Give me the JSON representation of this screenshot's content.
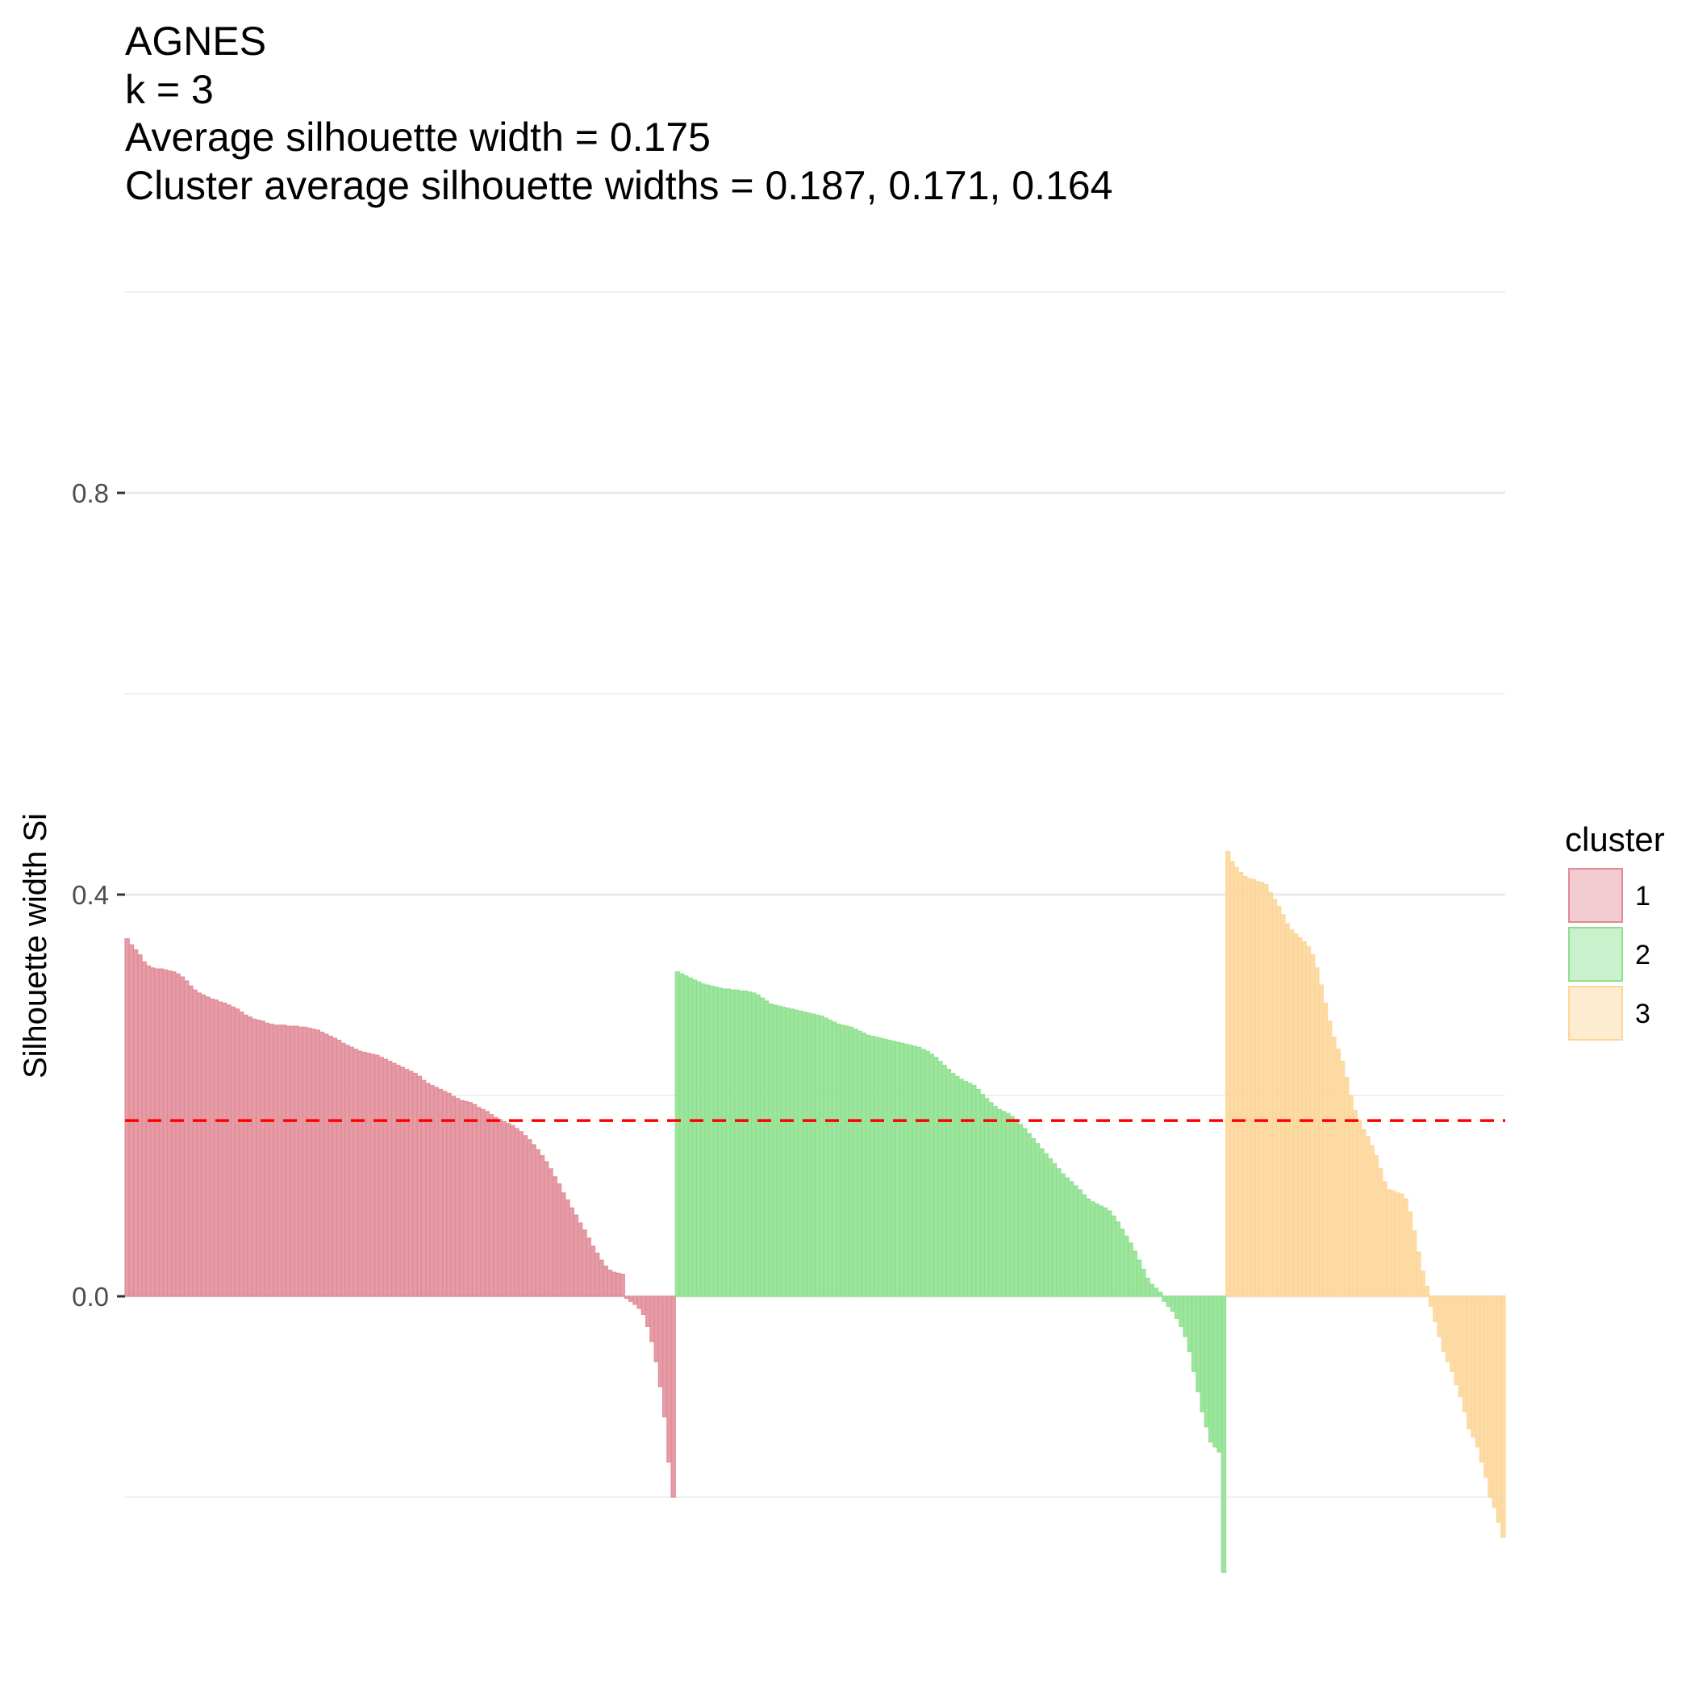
{
  "chart_data": {
    "type": "bar",
    "title_lines": [
      "AGNES",
      "k = 3",
      "Average silhouette width = 0.175",
      "Cluster average silhouette widths = 0.187, 0.171, 0.164"
    ],
    "ylabel": "Silhouette width Si",
    "xlabel": "",
    "ylim": [
      -0.3,
      1.0
    ],
    "yticks": [
      0.0,
      0.4,
      0.8
    ],
    "ytick_labels": [
      "0.0",
      "0.4",
      "0.8"
    ],
    "grid": true,
    "average_silhouette_width": 0.175,
    "reference_line_color": "#ff0000",
    "legend": {
      "title": "cluster",
      "placement": "right"
    },
    "series": [
      {
        "name": "1",
        "color": "#e08b96",
        "values": [
          0.356,
          0.35,
          0.345,
          0.34,
          0.333,
          0.329,
          0.327,
          0.326,
          0.326,
          0.325,
          0.324,
          0.323,
          0.321,
          0.318,
          0.314,
          0.309,
          0.305,
          0.302,
          0.3,
          0.298,
          0.296,
          0.295,
          0.293,
          0.292,
          0.29,
          0.288,
          0.286,
          0.283,
          0.28,
          0.278,
          0.276,
          0.275,
          0.274,
          0.272,
          0.271,
          0.27,
          0.27,
          0.27,
          0.269,
          0.269,
          0.269,
          0.268,
          0.268,
          0.267,
          0.266,
          0.265,
          0.263,
          0.261,
          0.259,
          0.257,
          0.255,
          0.252,
          0.25,
          0.248,
          0.246,
          0.244,
          0.243,
          0.242,
          0.241,
          0.24,
          0.238,
          0.236,
          0.234,
          0.232,
          0.23,
          0.228,
          0.226,
          0.224,
          0.222,
          0.219,
          0.215,
          0.212,
          0.21,
          0.208,
          0.206,
          0.204,
          0.202,
          0.199,
          0.197,
          0.195,
          0.194,
          0.193,
          0.191,
          0.188,
          0.186,
          0.184,
          0.181,
          0.178,
          0.176,
          0.174,
          0.172,
          0.17,
          0.167,
          0.164,
          0.16,
          0.156,
          0.151,
          0.146,
          0.14,
          0.134,
          0.127,
          0.119,
          0.112,
          0.103,
          0.096,
          0.088,
          0.081,
          0.073,
          0.066,
          0.058,
          0.05,
          0.043,
          0.036,
          0.03,
          0.026,
          0.024,
          0.023,
          0.022,
          -0.002,
          -0.005,
          -0.008,
          -0.012,
          -0.018,
          -0.03,
          -0.045,
          -0.065,
          -0.09,
          -0.12,
          -0.165,
          -0.2
        ]
      },
      {
        "name": "2",
        "color": "#8ce08d",
        "values": [
          0.323,
          0.321,
          0.319,
          0.317,
          0.315,
          0.313,
          0.311,
          0.31,
          0.309,
          0.308,
          0.307,
          0.306,
          0.306,
          0.305,
          0.305,
          0.304,
          0.304,
          0.303,
          0.302,
          0.3,
          0.297,
          0.294,
          0.291,
          0.29,
          0.289,
          0.288,
          0.287,
          0.286,
          0.285,
          0.284,
          0.283,
          0.282,
          0.281,
          0.28,
          0.279,
          0.277,
          0.275,
          0.273,
          0.271,
          0.27,
          0.269,
          0.268,
          0.266,
          0.264,
          0.262,
          0.26,
          0.259,
          0.258,
          0.257,
          0.256,
          0.255,
          0.254,
          0.253,
          0.252,
          0.251,
          0.25,
          0.249,
          0.248,
          0.246,
          0.244,
          0.241,
          0.238,
          0.234,
          0.23,
          0.226,
          0.222,
          0.219,
          0.216,
          0.214,
          0.212,
          0.21,
          0.206,
          0.201,
          0.197,
          0.193,
          0.189,
          0.186,
          0.184,
          0.182,
          0.179,
          0.175,
          0.171,
          0.167,
          0.162,
          0.157,
          0.152,
          0.147,
          0.142,
          0.137,
          0.132,
          0.127,
          0.122,
          0.118,
          0.114,
          0.11,
          0.106,
          0.101,
          0.097,
          0.094,
          0.092,
          0.09,
          0.088,
          0.085,
          0.08,
          0.074,
          0.067,
          0.06,
          0.053,
          0.045,
          0.036,
          0.027,
          0.018,
          0.012,
          0.008,
          0.004,
          -0.005,
          -0.01,
          -0.015,
          -0.022,
          -0.03,
          -0.04,
          -0.055,
          -0.075,
          -0.095,
          -0.115,
          -0.13,
          -0.145,
          -0.15,
          -0.155,
          -0.275
        ]
      },
      {
        "name": "3",
        "color": "#fdd597",
        "values": [
          0.443,
          0.433,
          0.427,
          0.422,
          0.418,
          0.416,
          0.415,
          0.413,
          0.412,
          0.41,
          0.402,
          0.395,
          0.388,
          0.38,
          0.371,
          0.365,
          0.361,
          0.357,
          0.353,
          0.348,
          0.34,
          0.327,
          0.31,
          0.292,
          0.274,
          0.258,
          0.246,
          0.234,
          0.218,
          0.2,
          0.185,
          0.175,
          0.166,
          0.159,
          0.15,
          0.14,
          0.127,
          0.114,
          0.106,
          0.105,
          0.103,
          0.102,
          0.097,
          0.084,
          0.065,
          0.044,
          0.025,
          0.01,
          -0.01,
          -0.025,
          -0.04,
          -0.055,
          -0.065,
          -0.075,
          -0.088,
          -0.1,
          -0.115,
          -0.132,
          -0.14,
          -0.15,
          -0.165,
          -0.18,
          -0.2,
          -0.21,
          -0.225,
          -0.24
        ]
      }
    ]
  }
}
